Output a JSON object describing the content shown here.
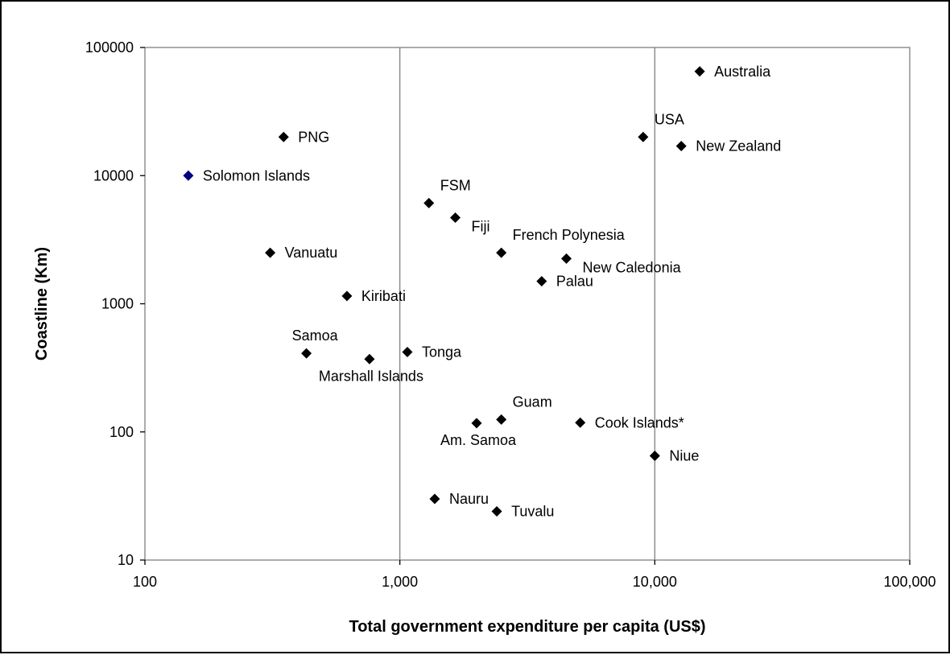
{
  "chart_data": {
    "type": "scatter",
    "title": "",
    "xlabel": "Total government expenditure per capita (US$)",
    "ylabel": "Coastline (Km)",
    "x_scale": "log",
    "y_scale": "log",
    "xlim": [
      100,
      100000
    ],
    "ylim": [
      10,
      100000
    ],
    "x_ticks": [
      {
        "value": 100,
        "label": "100"
      },
      {
        "value": 1000,
        "label": "1,000"
      },
      {
        "value": 10000,
        "label": "10,000"
      },
      {
        "value": 100000,
        "label": "100,000"
      }
    ],
    "y_ticks": [
      {
        "value": 10,
        "label": "10"
      },
      {
        "value": 100,
        "label": "100"
      },
      {
        "value": 1000,
        "label": "1000"
      },
      {
        "value": 10000,
        "label": "10000"
      },
      {
        "value": 100000,
        "label": "100000"
      }
    ],
    "vertical_gridlines_at": [
      1000,
      10000
    ],
    "horizontal_gridlines": false,
    "legend": "none",
    "marker": "diamond",
    "marker_color": "#000000",
    "highlight_color": "#000080",
    "points": [
      {
        "label": "Australia",
        "x": 15000,
        "y": 65000,
        "label_pos": "right"
      },
      {
        "label": "USA",
        "x": 9000,
        "y": 20000,
        "label_pos": "above-right"
      },
      {
        "label": "New Zealand",
        "x": 12700,
        "y": 17000,
        "label_pos": "right"
      },
      {
        "label": "PNG",
        "x": 350,
        "y": 20000,
        "label_pos": "right"
      },
      {
        "label": "Solomon Islands",
        "x": 148,
        "y": 10000,
        "label_pos": "right",
        "highlight": true
      },
      {
        "label": "FSM",
        "x": 1300,
        "y": 6100,
        "label_pos": "above-right"
      },
      {
        "label": "Fiji",
        "x": 1650,
        "y": 4700,
        "label_pos": "below-right"
      },
      {
        "label": "French Polynesia",
        "x": 2500,
        "y": 2500,
        "label_pos": "above-right"
      },
      {
        "label": "Vanuatu",
        "x": 310,
        "y": 2500,
        "label_pos": "right"
      },
      {
        "label": "New Caledonia",
        "x": 4500,
        "y": 2250,
        "label_pos": "below-right"
      },
      {
        "label": "Palau",
        "x": 3600,
        "y": 1500,
        "label_pos": "right"
      },
      {
        "label": "Kiribati",
        "x": 620,
        "y": 1150,
        "label_pos": "right"
      },
      {
        "label": "Samoa",
        "x": 430,
        "y": 410,
        "label_pos": "above-left"
      },
      {
        "label": "Tonga",
        "x": 1070,
        "y": 420,
        "label_pos": "right"
      },
      {
        "label": "Marshall Islands",
        "x": 760,
        "y": 370,
        "label_pos": "below"
      },
      {
        "label": "Guam",
        "x": 2500,
        "y": 125,
        "label_pos": "above-right"
      },
      {
        "label": "Am. Samoa",
        "x": 2000,
        "y": 117,
        "label_pos": "below"
      },
      {
        "label": "Cook Islands*",
        "x": 5100,
        "y": 118,
        "label_pos": "right"
      },
      {
        "label": "Niue",
        "x": 10000,
        "y": 65,
        "label_pos": "right"
      },
      {
        "label": "Nauru",
        "x": 1370,
        "y": 30,
        "label_pos": "right"
      },
      {
        "label": "Tuvalu",
        "x": 2400,
        "y": 24,
        "label_pos": "right"
      }
    ]
  }
}
